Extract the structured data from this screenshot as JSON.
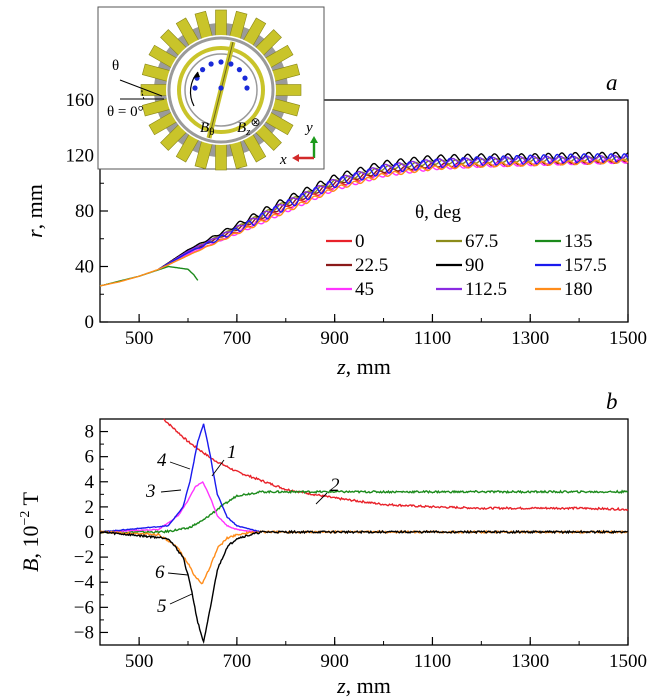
{
  "chart_data": [
    {
      "type": "line",
      "panel_label": "a",
      "xlabel_var": "z",
      "xlabel_unit": ", mm",
      "ylabel_var": "r",
      "ylabel_unit": ", mm",
      "xlim": [
        420,
        1500
      ],
      "ylim": [
        0,
        160
      ],
      "xticks": [
        "500",
        "700",
        "900",
        "1100",
        "1300",
        "1500"
      ],
      "yticks": [
        "0",
        "40",
        "80",
        "120",
        "160"
      ],
      "legend_title": "θ, deg",
      "legend_position": "right",
      "series": [
        {
          "name": "0",
          "color": "#e8222a",
          "x": [
            540,
            600,
            700,
            800,
            900,
            1000,
            1100,
            1200,
            1300,
            1400,
            1500
          ],
          "y": [
            38,
            48,
            65,
            82,
            98,
            108,
            112,
            113,
            114,
            115,
            116
          ]
        },
        {
          "name": "22.5",
          "color": "#8b1a1a",
          "x": [
            540,
            600,
            700,
            800,
            900,
            1000,
            1100,
            1200,
            1300,
            1400,
            1500
          ],
          "y": [
            38,
            50,
            67,
            84,
            100,
            109,
            113,
            114,
            115,
            115,
            116
          ]
        },
        {
          "name": "45",
          "color": "#ff33ff",
          "x": [
            540,
            600,
            700,
            800,
            900,
            1000,
            1100,
            1200,
            1300,
            1400,
            1500
          ],
          "y": [
            38,
            49,
            64,
            80,
            96,
            106,
            111,
            113,
            114,
            115,
            116
          ]
        },
        {
          "name": "67.5",
          "color": "#8c8c1a",
          "x": [
            540,
            600,
            700,
            800,
            900,
            1000,
            1100,
            1200,
            1300,
            1400,
            1500
          ],
          "y": [
            38,
            51,
            68,
            86,
            101,
            111,
            115,
            116,
            117,
            117,
            118
          ]
        },
        {
          "name": "90",
          "color": "#000000",
          "x": [
            540,
            600,
            700,
            800,
            900,
            1000,
            1100,
            1200,
            1300,
            1400,
            1500
          ],
          "y": [
            38,
            52,
            70,
            88,
            104,
            114,
            118,
            119,
            119,
            120,
            120
          ]
        },
        {
          "name": "112.5",
          "color": "#8a2be2",
          "x": [
            540,
            600,
            700,
            800,
            900,
            1000,
            1100,
            1200,
            1300,
            1400,
            1500
          ],
          "y": [
            38,
            51,
            68,
            86,
            102,
            112,
            116,
            117,
            118,
            118,
            119
          ]
        },
        {
          "name": "135",
          "color": "#1b8a1b",
          "x": [
            420,
            500,
            560,
            600,
            612,
            620
          ],
          "y": [
            26,
            33,
            40,
            38,
            34,
            30
          ]
        },
        {
          "name": "157.5",
          "color": "#1a1aee",
          "x": [
            540,
            600,
            700,
            800,
            900,
            1000,
            1100,
            1200,
            1300,
            1400,
            1500
          ],
          "y": [
            38,
            50,
            66,
            84,
            100,
            110,
            114,
            116,
            117,
            118,
            118
          ]
        },
        {
          "name": "180",
          "color": "#ff8c1a",
          "x": [
            420,
            460,
            500,
            540,
            600,
            700,
            800,
            900,
            1000,
            1100,
            1200,
            1300,
            1400,
            1500
          ],
          "y": [
            26,
            29,
            33,
            38,
            48,
            64,
            80,
            96,
            106,
            111,
            113,
            114,
            115,
            116
          ]
        }
      ]
    },
    {
      "type": "line",
      "panel_label": "b",
      "xlabel_var": "z",
      "xlabel_unit": ", mm",
      "ylabel_var": "B",
      "ylabel_unit": ", 10",
      "ylabel_exp": "−2",
      "ylabel_unit2": " T",
      "xlim": [
        420,
        1500
      ],
      "ylim": [
        -9,
        9
      ],
      "xticks": [
        "500",
        "700",
        "900",
        "1100",
        "1300",
        "1500"
      ],
      "yticks": [
        "8",
        "6",
        "4",
        "2",
        "0",
        "−2",
        "−4",
        "−6",
        "−8"
      ],
      "series": [
        {
          "name": "1",
          "color": "#e8222a",
          "x": [
            550,
            600,
            650,
            700,
            750,
            800,
            900,
            1000,
            1100,
            1200,
            1300,
            1400,
            1500
          ],
          "y": [
            9.0,
            7.2,
            5.8,
            4.8,
            4.1,
            3.4,
            2.7,
            2.2,
            2.0,
            1.9,
            1.9,
            1.9,
            1.8
          ]
        },
        {
          "name": "2",
          "color": "#1b8a1b",
          "x": [
            420,
            550,
            600,
            630,
            660,
            700,
            750,
            800,
            900,
            1000,
            1100,
            1200,
            1300,
            1400,
            1500
          ],
          "y": [
            0,
            0,
            0.3,
            0.9,
            1.8,
            2.9,
            3.2,
            3.2,
            3.2,
            3.2,
            3.2,
            3.2,
            3.2,
            3.2,
            3.2
          ]
        },
        {
          "name": "3",
          "color": "#ff33ff",
          "x": [
            420,
            540,
            580,
            600,
            615,
            630,
            645,
            660,
            680,
            700,
            740
          ],
          "y": [
            0,
            0.2,
            1.3,
            2.5,
            3.6,
            4.0,
            2.8,
            1.3,
            0.5,
            0.2,
            0
          ]
        },
        {
          "name": "4",
          "color": "#1a1aee",
          "x": [
            420,
            560,
            590,
            605,
            620,
            632,
            645,
            660,
            680,
            700,
            750
          ],
          "y": [
            0,
            0.5,
            2.0,
            4.2,
            7.2,
            8.6,
            6.2,
            3.0,
            1.2,
            0.5,
            0
          ]
        },
        {
          "name": "5",
          "color": "#000000",
          "x": [
            420,
            560,
            590,
            605,
            620,
            632,
            645,
            660,
            680,
            700,
            750,
            1500
          ],
          "y": [
            0,
            -0.5,
            -2.0,
            -4.2,
            -7.2,
            -8.8,
            -6.2,
            -3.0,
            -1.2,
            -0.5,
            0,
            0
          ]
        },
        {
          "name": "6",
          "color": "#ff8c1a",
          "x": [
            420,
            540,
            580,
            600,
            615,
            630,
            645,
            660,
            680,
            700,
            740,
            1500
          ],
          "y": [
            0,
            -0.2,
            -1.3,
            -2.5,
            -3.6,
            -4.1,
            -2.8,
            -1.3,
            -0.5,
            -0.2,
            0,
            0
          ]
        }
      ],
      "annotations": [
        "1",
        "2",
        "3",
        "4",
        "5",
        "6"
      ]
    }
  ],
  "inset": {
    "theta_label": "θ",
    "theta_zero_label": "θ = 0°",
    "b_theta_label": "B",
    "b_theta_sub": "θ",
    "bz_label": "B",
    "bz_sub": "z",
    "bz_symbol": "⊗",
    "x_axis": "x",
    "y_axis": "y"
  },
  "colors": {
    "axis": "#000000",
    "inset_yellow": "#c9c42a",
    "inset_gray": "#9a9a9a",
    "dots": "#1a2ad8"
  }
}
